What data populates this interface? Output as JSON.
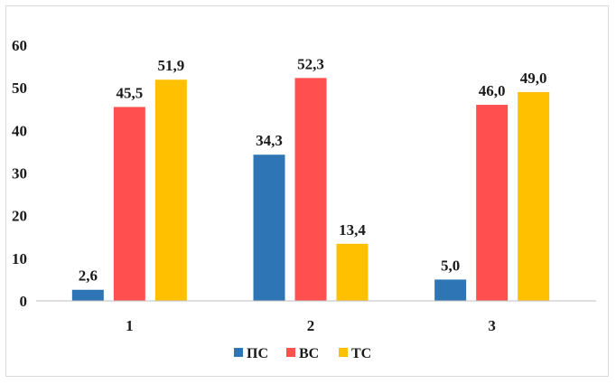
{
  "chart_data": {
    "type": "bar",
    "title": "",
    "xlabel": "",
    "ylabel": "",
    "categories": [
      "1",
      "2",
      "3"
    ],
    "ylim": [
      0,
      60
    ],
    "yticks": [
      "0",
      "10",
      "20",
      "30",
      "40",
      "50",
      "60"
    ],
    "grid": false,
    "legend_position": "bottom",
    "series": [
      {
        "name": "ПС",
        "color": "#2e75b6",
        "values": [
          2.6,
          34.3,
          5.0
        ],
        "labels": [
          "2,6",
          "34,3",
          "5,0"
        ]
      },
      {
        "name": "ВС",
        "color": "#ff4f4f",
        "values": [
          45.5,
          52.3,
          46.0
        ],
        "labels": [
          "45,5",
          "52,3",
          "46,0"
        ]
      },
      {
        "name": "ТС",
        "color": "#ffc000",
        "values": [
          51.9,
          13.4,
          49.0
        ],
        "labels": [
          "51,9",
          "13,4",
          "49,0"
        ]
      }
    ]
  }
}
